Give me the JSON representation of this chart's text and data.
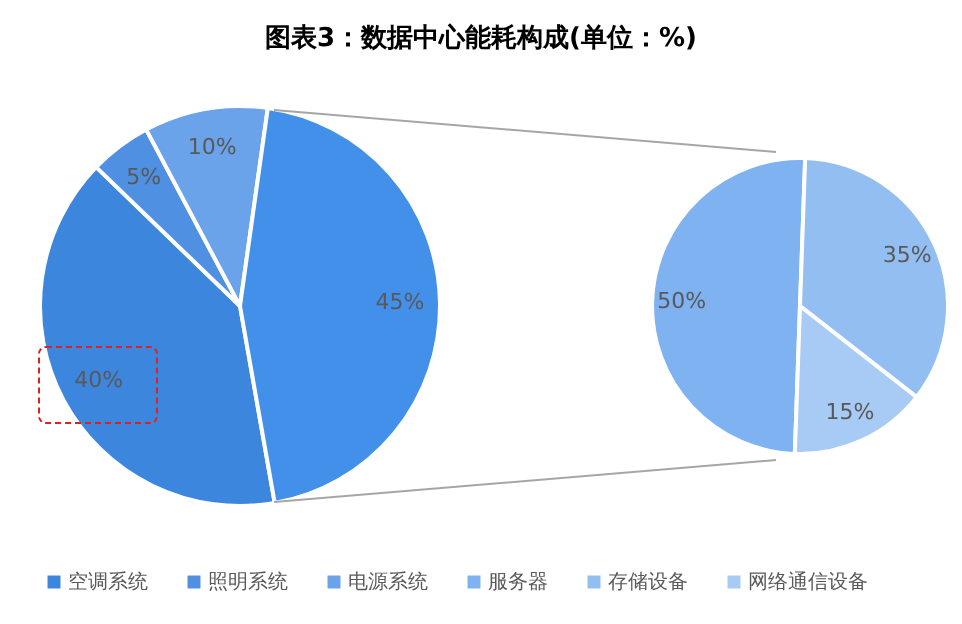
{
  "chart_data": [
    {
      "type": "pie",
      "title": "图表3：数据中心能耗构成(单位：%)",
      "categories": [
        "空调系统",
        "照明系统",
        "电源系统",
        null
      ],
      "values": [
        40,
        5,
        10,
        45
      ],
      "colors": [
        "#3d86dd",
        "#4f90e2",
        "#6aa3ea",
        "#4290e9"
      ],
      "value_labels": [
        "40%",
        "5%",
        "10%",
        "45%"
      ],
      "legend": "bottom"
    },
    {
      "type": "pie",
      "categories": [
        "服务器",
        "存储设备",
        "网络通信设备"
      ],
      "values": [
        50,
        35,
        15
      ],
      "colors": [
        "#7eb2f0",
        "#93bef2",
        "#a8cbf5"
      ],
      "value_labels": [
        "50%",
        "35%",
        "15%"
      ],
      "legend": "bottom"
    }
  ]
}
